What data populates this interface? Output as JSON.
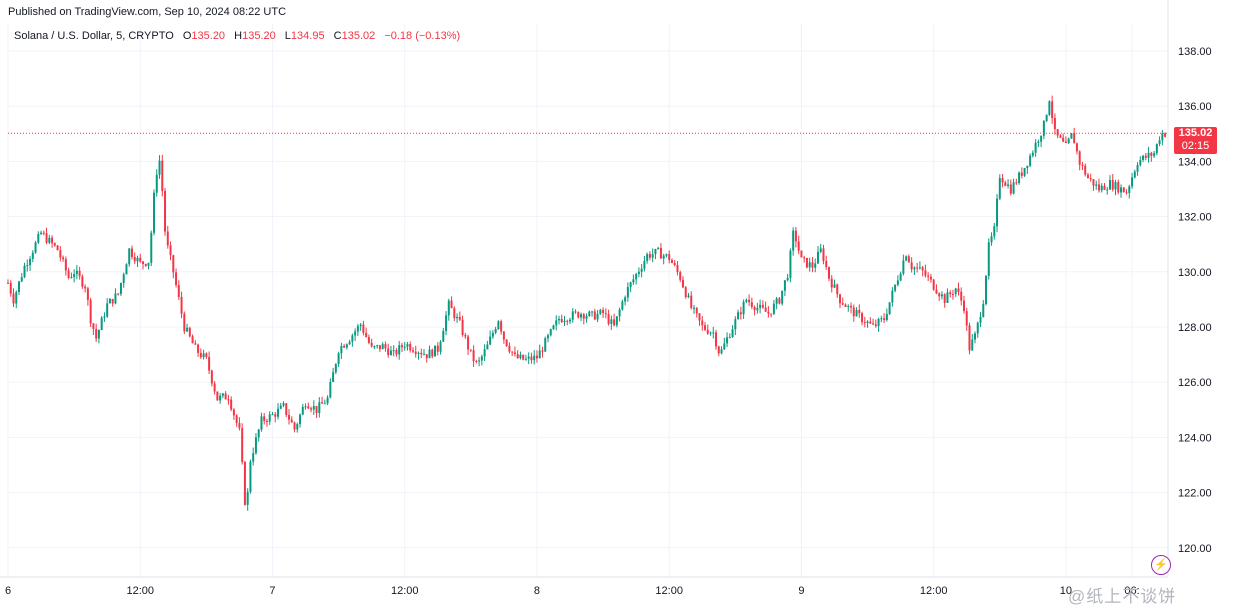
{
  "header": {
    "published": "Published on TradingView.com, Sep 10, 2024 08:22 UTC"
  },
  "legend": {
    "symbol": "Solana / U.S. Dollar, 5, CRYPTO",
    "o_label": "O",
    "o_value": "135.20",
    "h_label": "H",
    "h_value": "135.20",
    "l_label": "L",
    "l_value": "134.95",
    "c_label": "C",
    "c_value": "135.02",
    "change": "−0.18 (−0.13%)"
  },
  "last_price": {
    "price": "135.02",
    "countdown": "02:15"
  },
  "watermark": "@纸上不谈饼",
  "icons": {
    "alert": "lightning-alert-icon"
  },
  "colors": {
    "up": "#089981",
    "down": "#f23645",
    "grid": "#f0f3fa",
    "last_line": "#f23645"
  },
  "chart_data": {
    "type": "candlestick",
    "ylim": [
      119.3,
      138.7
    ],
    "y_ticks": [
      "120.00",
      "122.00",
      "124.00",
      "126.00",
      "128.00",
      "130.00",
      "132.00",
      "134.00",
      "136.00",
      "138.00"
    ],
    "x_ticks": [
      {
        "label": "6",
        "x": 0
      },
      {
        "label": "12:00",
        "x": 12
      },
      {
        "label": "7",
        "x": 24
      },
      {
        "label": "12:00",
        "x": 36
      },
      {
        "label": "8",
        "x": 48
      },
      {
        "label": "12:00",
        "x": 60
      },
      {
        "label": "9",
        "x": 72
      },
      {
        "label": "12:00",
        "x": 84
      },
      {
        "label": "10",
        "x": 96
      },
      {
        "label": "06:",
        "x": 102
      }
    ],
    "last_close": 135.02,
    "path_points": [
      [
        0,
        129.6
      ],
      [
        0.5,
        129.0
      ],
      [
        1.5,
        130.2
      ],
      [
        3,
        131.4
      ],
      [
        4.5,
        130.8
      ],
      [
        5.5,
        129.8
      ],
      [
        6,
        130.0
      ],
      [
        7,
        129.5
      ],
      [
        7.5,
        128.3
      ],
      [
        8,
        127.6
      ],
      [
        9,
        128.8
      ],
      [
        10,
        129.2
      ],
      [
        11,
        130.8
      ],
      [
        12,
        130.3
      ],
      [
        12.8,
        130.4
      ],
      [
        13.4,
        133.5
      ],
      [
        13.8,
        134.1
      ],
      [
        14.3,
        131.2
      ],
      [
        15,
        130.0
      ],
      [
        16,
        128.0
      ],
      [
        17,
        127.2
      ],
      [
        18,
        126.8
      ],
      [
        19,
        125.4
      ],
      [
        20,
        125.5
      ],
      [
        21,
        124.2
      ],
      [
        21.6,
        121.2
      ],
      [
        22,
        123.2
      ],
      [
        23,
        124.6
      ],
      [
        24,
        124.8
      ],
      [
        25,
        125.1
      ],
      [
        26,
        124.3
      ],
      [
        27,
        125.3
      ],
      [
        28,
        125.0
      ],
      [
        29,
        125.4
      ],
      [
        30,
        127.2
      ],
      [
        31,
        127.6
      ],
      [
        32,
        128.1
      ],
      [
        33,
        127.2
      ],
      [
        34,
        127.3
      ],
      [
        35,
        127.0
      ],
      [
        36,
        127.4
      ],
      [
        37,
        127.2
      ],
      [
        38,
        127.0
      ],
      [
        39,
        127.2
      ],
      [
        40,
        128.8
      ],
      [
        41,
        128.1
      ],
      [
        42,
        127.0
      ],
      [
        42.6,
        126.6
      ],
      [
        43.5,
        127.3
      ],
      [
        44.5,
        128.3
      ],
      [
        45,
        127.6
      ],
      [
        46,
        126.9
      ],
      [
        47,
        126.8
      ],
      [
        48,
        126.9
      ],
      [
        49,
        127.6
      ],
      [
        50,
        128.3
      ],
      [
        51,
        128.4
      ],
      [
        52,
        128.5
      ],
      [
        53,
        128.4
      ],
      [
        54,
        128.5
      ],
      [
        55,
        128.0
      ],
      [
        56,
        129.2
      ],
      [
        57,
        129.9
      ],
      [
        58,
        130.6
      ],
      [
        59,
        130.7
      ],
      [
        60,
        130.5
      ],
      [
        61,
        129.8
      ],
      [
        62,
        128.7
      ],
      [
        63,
        128.0
      ],
      [
        64,
        127.8
      ],
      [
        64.6,
        127.0
      ],
      [
        65.5,
        127.8
      ],
      [
        66.5,
        128.6
      ],
      [
        67,
        129.0
      ],
      [
        68,
        128.7
      ],
      [
        69,
        128.5
      ],
      [
        70,
        129.0
      ],
      [
        70.8,
        130.0
      ],
      [
        71.3,
        131.5
      ],
      [
        72,
        130.4
      ],
      [
        73,
        130.2
      ],
      [
        73.8,
        130.8
      ],
      [
        74.5,
        129.8
      ],
      [
        75.5,
        129.0
      ],
      [
        76.5,
        128.6
      ],
      [
        77.5,
        128.3
      ],
      [
        78.5,
        128.0
      ],
      [
        79.5,
        128.3
      ],
      [
        80.5,
        129.5
      ],
      [
        81.5,
        130.7
      ],
      [
        82,
        130.2
      ],
      [
        83,
        130.0
      ],
      [
        84,
        129.5
      ],
      [
        85,
        129.0
      ],
      [
        86,
        129.4
      ],
      [
        86.8,
        128.7
      ],
      [
        87.2,
        127.2
      ],
      [
        87.8,
        127.7
      ],
      [
        88.5,
        129.0
      ],
      [
        89,
        130.9
      ],
      [
        89.5,
        131.5
      ],
      [
        90,
        133.5
      ],
      [
        91,
        133.0
      ],
      [
        92,
        133.6
      ],
      [
        93,
        134.4
      ],
      [
        94,
        135.3
      ],
      [
        94.5,
        136.3
      ],
      [
        95,
        135.0
      ],
      [
        96,
        134.5
      ],
      [
        96.6,
        135.0
      ],
      [
        97.2,
        134.0
      ],
      [
        98,
        133.4
      ],
      [
        99,
        133.0
      ],
      [
        100,
        133.2
      ],
      [
        101,
        133.0
      ],
      [
        101.5,
        132.9
      ],
      [
        102.5,
        134.0
      ],
      [
        103.5,
        134.2
      ],
      [
        104,
        134.3
      ],
      [
        104.6,
        135.0
      ],
      [
        105,
        135.02
      ]
    ]
  }
}
